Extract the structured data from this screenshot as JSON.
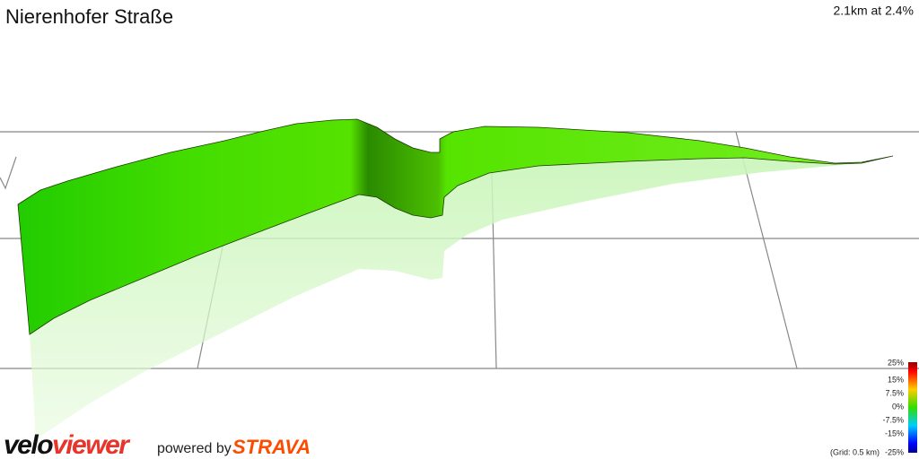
{
  "header": {
    "title": "Nierenhofer Straße",
    "summary": "2.1km at 2.4%"
  },
  "legend": {
    "labels": [
      "25%",
      "15%",
      "7.5%",
      "0%",
      "-7.5%",
      "-15%",
      "-25%"
    ],
    "grid_note": "(Grid: 0.5 km)"
  },
  "branding": {
    "logo_part_1": "velo",
    "logo_part_2": "viewer",
    "powered_by": "powered by",
    "partner": "STRAVA"
  }
}
